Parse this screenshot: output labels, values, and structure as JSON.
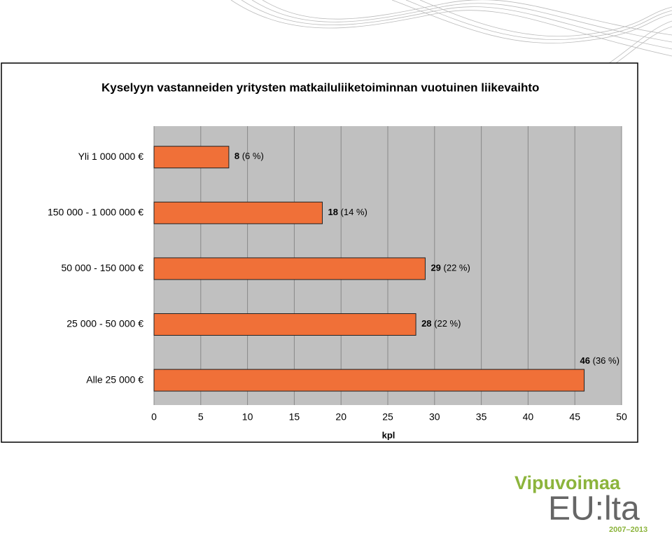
{
  "chart_data": {
    "type": "barh",
    "title": "Kyselyyn vastanneiden yritysten matkailuliiketoiminnan vuotuinen liikevaihto",
    "categories": [
      "Yli 1 000 000 €",
      "150 000 - 1 000 000 €",
      "50 000 - 150 000 €",
      "25 000 - 50 000 €",
      "Alle 25 000 €"
    ],
    "values": [
      8,
      18,
      29,
      28,
      46
    ],
    "value_labels": [
      "8 (6 %)",
      "18 (14 %)",
      "29 (22 %)",
      "28 (22 %)",
      "46 (36 %)"
    ],
    "color": "#f07038",
    "xlabel": "kpl",
    "xlim": [
      0,
      50
    ],
    "xticks": [
      0,
      5,
      10,
      15,
      20,
      25,
      30,
      35,
      40,
      45,
      50
    ],
    "grid": true
  },
  "logo": {
    "line1": "Vipuvoimaa",
    "line2": "EU:lta",
    "years": "2007–2013"
  }
}
